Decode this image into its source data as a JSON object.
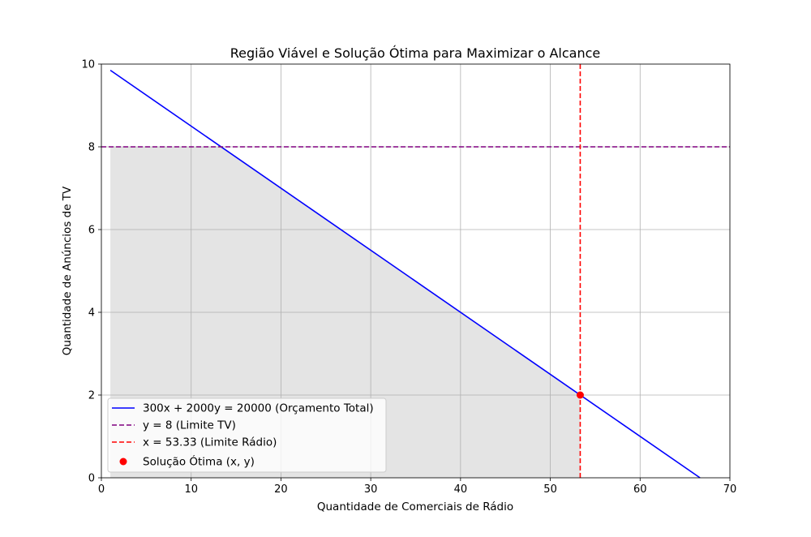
{
  "chart_data": {
    "type": "line",
    "title": "Região Viável e Solução Ótima para Maximizar o Alcance",
    "xlabel": "Quantidade de Comerciais de Rádio",
    "ylabel": "Quantidade de Anúncios de TV",
    "xlim": [
      0,
      70
    ],
    "ylim": [
      0,
      10
    ],
    "xticks": [
      "0",
      "10",
      "20",
      "30",
      "40",
      "50",
      "60",
      "70"
    ],
    "yticks": [
      "0",
      "2",
      "4",
      "6",
      "8",
      "10"
    ],
    "grid": true,
    "legend_position": "lower-left",
    "series": [
      {
        "name": "300x + 2000y = 20000 (Orçamento Total)",
        "kind": "line",
        "style": "solid",
        "color": "#0000ff",
        "x": [
          1,
          66.67
        ],
        "y": [
          9.85,
          0
        ]
      },
      {
        "name": "y = 8 (Limite TV)",
        "kind": "hline",
        "style": "dashed",
        "color": "#800080",
        "y": 8
      },
      {
        "name": "x = 53.33 (Limite Rádio)",
        "kind": "vline",
        "style": "dashed",
        "color": "#ff0000",
        "x": 53.33
      },
      {
        "name": "Solução Ótima (x, y)",
        "kind": "point",
        "color": "#ff0000",
        "x": 53.33,
        "y": 2
      }
    ],
    "feasible_region": {
      "color": "#e4e4e4",
      "x": [
        1,
        1,
        13.33,
        53.33,
        53.33
      ],
      "y": [
        0,
        8,
        8,
        2,
        0
      ]
    }
  }
}
